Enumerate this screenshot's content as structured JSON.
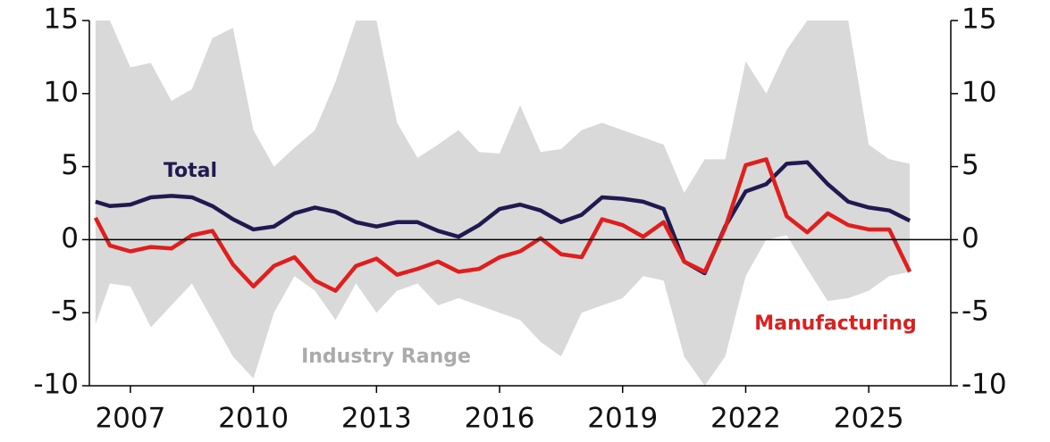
{
  "chart_data": {
    "type": "line",
    "x": [
      2006.15,
      2006.5,
      2007,
      2007.5,
      2008,
      2008.5,
      2009,
      2009.5,
      2010,
      2010.5,
      2011,
      2011.5,
      2012,
      2012.5,
      2013,
      2013.5,
      2014,
      2014.5,
      2015,
      2015.5,
      2016,
      2016.5,
      2017,
      2017.5,
      2018,
      2018.5,
      2019,
      2019.5,
      2020,
      2020.5,
      2021,
      2021.5,
      2022,
      2022.5,
      2023,
      2023.5,
      2024,
      2024.5,
      2025,
      2025.5,
      2026
    ],
    "xlim": [
      2006,
      2027
    ],
    "xticks": [
      2007,
      2010,
      2013,
      2016,
      2019,
      2022,
      2025
    ],
    "ylim": [
      -10,
      15
    ],
    "yticks": [
      -10,
      -5,
      0,
      5,
      10,
      15
    ],
    "series": [
      {
        "name": "Total",
        "color": "#1f1a4f",
        "values": [
          2.6,
          2.3,
          2.4,
          2.9,
          3.0,
          2.9,
          2.3,
          1.4,
          0.7,
          0.9,
          1.8,
          2.2,
          1.9,
          1.2,
          0.9,
          1.2,
          1.2,
          0.6,
          0.2,
          1.0,
          2.1,
          2.4,
          2.0,
          1.2,
          1.7,
          2.9,
          2.8,
          2.6,
          2.1,
          -1.5,
          -2.3,
          0.9,
          3.3,
          3.8,
          5.2,
          5.3,
          3.8,
          2.6,
          2.2,
          2.0,
          1.3
        ]
      },
      {
        "name": "Manufacturing",
        "color": "#e01e1e",
        "values": [
          1.5,
          -0.4,
          -0.8,
          -0.5,
          -0.6,
          0.3,
          0.6,
          -1.7,
          -3.2,
          -1.8,
          -1.2,
          -2.8,
          -3.5,
          -1.8,
          -1.3,
          -2.4,
          -2.0,
          -1.5,
          -2.2,
          -2.0,
          -1.2,
          -0.8,
          0.1,
          -1.0,
          -1.2,
          1.4,
          1.0,
          0.2,
          1.2,
          -1.5,
          -2.2,
          0.8,
          5.1,
          5.5,
          1.6,
          0.5,
          1.8,
          1.0,
          0.7,
          0.7,
          -2.2
        ]
      }
    ],
    "range": {
      "name": "Industry Range",
      "color": "#d9d9d9",
      "upper": [
        15,
        15,
        11.8,
        12.1,
        9.5,
        10.3,
        13.8,
        14.5,
        7.5,
        5,
        6.3,
        7.5,
        10.8,
        15,
        15,
        8,
        5.6,
        6.5,
        7.5,
        6,
        5.9,
        9.2,
        6,
        6.2,
        7.5,
        8,
        7.5,
        7,
        6.5,
        3.2,
        5.5,
        5.5,
        12.2,
        10,
        13,
        15,
        15,
        15,
        6.5,
        5.5,
        5.2
      ],
      "lower": [
        -5.8,
        -3,
        -3.2,
        -6,
        -4.5,
        -3,
        -5.5,
        -8,
        -9.5,
        -5,
        -2.5,
        -3.5,
        -5.5,
        -3,
        -5,
        -3.5,
        -3,
        -4.5,
        -4,
        -4.5,
        -5,
        -5.5,
        -7,
        -8,
        -5,
        -4.5,
        -4,
        -2.5,
        -2.8,
        -8,
        -10,
        -8,
        -2.5,
        0,
        0.3,
        -2,
        -4.2,
        -4,
        -3.5,
        -2.5,
        -2.2
      ]
    }
  }
}
